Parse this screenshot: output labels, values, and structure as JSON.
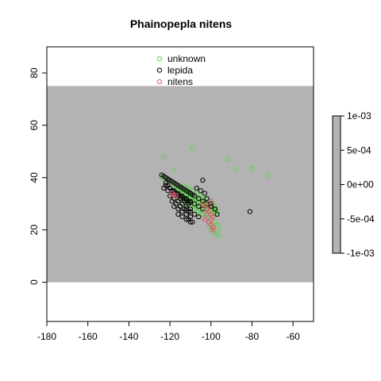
{
  "chart_data": {
    "type": "scatter",
    "title": "Phainopepla nitens",
    "xlabel": "",
    "ylabel": "",
    "xlim": [
      -180,
      -50
    ],
    "ylim": [
      -15,
      90
    ],
    "x_ticks": [
      -180,
      -160,
      -140,
      -120,
      -100,
      -80,
      -60
    ],
    "x_tick_labels": [
      "-180",
      "-160",
      "-140",
      "-120",
      "-100",
      "-80",
      "-60"
    ],
    "y_ticks": [
      0,
      20,
      40,
      60,
      80
    ],
    "y_tick_labels": [
      "0",
      "20",
      "40",
      "60",
      "80"
    ],
    "grid": false,
    "legend_position": "top-center",
    "background_region": {
      "x": [
        -180,
        -50
      ],
      "y": [
        0,
        75
      ],
      "color": "#b3b3b3"
    },
    "colorbar": {
      "range": [
        -0.001,
        0.001
      ],
      "ticks": [
        -0.001,
        -0.0005,
        0,
        0.0005,
        0.001
      ],
      "tick_labels": [
        "-1e-03",
        "-5e-04",
        "0e+00",
        "5e-04",
        "1e-03"
      ],
      "color": "#b3b3b3"
    },
    "series": [
      {
        "name": "unknown",
        "color": "#61d04f",
        "x": [
          -123,
          -118,
          -109,
          -92,
          -88,
          -80,
          -72,
          -124,
          -121,
          -119,
          -117,
          -116,
          -115,
          -114,
          -113,
          -112,
          -111,
          -110,
          -109,
          -108,
          -107,
          -106,
          -105,
          -104,
          -103,
          -102,
          -101,
          -100,
          -99,
          -98,
          -97,
          -113,
          -111,
          -109,
          -107,
          -105,
          -103,
          -101,
          -99,
          -98,
          -112,
          -110,
          -108,
          -106,
          -104,
          -102,
          -100,
          -99,
          -114,
          -112,
          -110,
          -108,
          -106,
          -104,
          -102,
          -100,
          -98,
          -97,
          -96,
          -115,
          -113,
          -111,
          -109,
          -107,
          -105,
          -103,
          -101,
          -117,
          -116,
          -114,
          -112,
          -110,
          -108,
          -106,
          -104,
          -102,
          -100,
          -98,
          -101,
          -99,
          -97,
          -103,
          -105,
          -107,
          -109,
          -111,
          -100,
          -98,
          -96
        ],
        "y": [
          48,
          43,
          51.5,
          47,
          43,
          43.5,
          41,
          40,
          39,
          38,
          37,
          36.5,
          36,
          35.5,
          35,
          34.5,
          34,
          33.5,
          33,
          32.5,
          32,
          31.5,
          31,
          30.5,
          30,
          29.5,
          29,
          28.5,
          28,
          27.5,
          27,
          37,
          36,
          35,
          34,
          33,
          32,
          31,
          30,
          29,
          33,
          32,
          31,
          30,
          29,
          28,
          27,
          26,
          31,
          30,
          29,
          28,
          27,
          26,
          25,
          24,
          23,
          22,
          21,
          34,
          33,
          32,
          31,
          30,
          29,
          28,
          27,
          36,
          35,
          34,
          33,
          32,
          31,
          30,
          29,
          28,
          27,
          26,
          22,
          21,
          19,
          24,
          26,
          28,
          30,
          32,
          20,
          18.5,
          17.5
        ]
      },
      {
        "name": "lepida",
        "color": "#000000",
        "x": [
          -124,
          -123,
          -122,
          -121,
          -120,
          -119,
          -118,
          -117,
          -116,
          -115,
          -114,
          -113,
          -112,
          -111,
          -110,
          -109,
          -122,
          -121,
          -120,
          -119,
          -118,
          -117,
          -116,
          -115,
          -114,
          -113,
          -112,
          -111,
          -110,
          -123,
          -121,
          -119,
          -117,
          -115,
          -113,
          -111,
          -120,
          -118,
          -116,
          -114,
          -112,
          -110,
          -119,
          -117,
          -115,
          -113,
          -111,
          -118,
          -116,
          -114,
          -112,
          -110,
          -116,
          -114,
          -112,
          -110,
          -122,
          -120,
          -118,
          -116,
          -114,
          -112,
          -110,
          -108,
          -106,
          -104,
          -110,
          -108,
          -106,
          -104,
          -102,
          -100,
          -98,
          -112,
          -110,
          -108,
          -106,
          -111,
          -109,
          -104,
          -102,
          -100,
          -98,
          -97,
          -81,
          -103,
          -101,
          -105,
          -107
        ],
        "y": [
          41,
          40.5,
          40,
          39.5,
          39,
          38.5,
          38,
          37.5,
          37,
          36.5,
          36,
          35.5,
          35,
          34.5,
          34,
          33.5,
          38,
          37,
          36,
          35,
          34.5,
          34,
          33.5,
          33,
          32.5,
          32,
          31.5,
          31,
          30.5,
          36,
          35,
          34,
          33,
          32,
          31,
          30,
          33,
          32,
          31,
          30,
          29,
          28,
          31,
          30,
          29,
          28,
          27,
          29,
          28,
          27,
          26,
          25,
          26,
          25,
          24,
          23,
          37,
          36,
          35,
          34,
          33,
          32,
          31,
          30,
          29,
          28,
          34,
          33,
          32,
          31,
          30,
          29,
          28,
          28,
          27,
          26,
          25,
          24,
          23,
          39,
          32,
          30,
          28,
          26,
          27,
          34,
          29,
          35,
          36
        ]
      },
      {
        "name": "nitens",
        "color": "#df536b",
        "x": [
          -119,
          -118,
          -117,
          -104,
          -103,
          -102,
          -101,
          -100,
          -99,
          -103,
          -101,
          -100,
          -99,
          -102,
          -100,
          -99,
          -101,
          -100
        ],
        "y": [
          34,
          33.5,
          33,
          30,
          29,
          28,
          27,
          26,
          25,
          24,
          23,
          22,
          21,
          26,
          24,
          20,
          29,
          31
        ]
      }
    ]
  }
}
